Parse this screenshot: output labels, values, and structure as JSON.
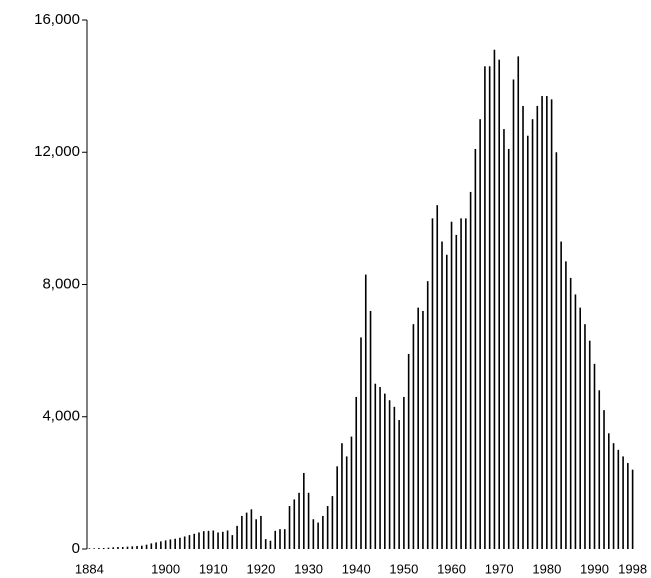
{
  "chart_data": {
    "type": "bar",
    "color": "#000000",
    "categories": [
      "1884",
      null,
      null,
      null,
      null,
      null,
      null,
      null,
      null,
      null,
      null,
      null,
      null,
      null,
      null,
      null,
      "1900",
      null,
      null,
      null,
      null,
      null,
      null,
      null,
      null,
      null,
      "1910",
      null,
      null,
      null,
      null,
      null,
      null,
      null,
      null,
      null,
      "1920",
      null,
      null,
      null,
      null,
      null,
      null,
      null,
      null,
      null,
      "1930",
      null,
      null,
      null,
      null,
      null,
      null,
      null,
      null,
      null,
      "1940",
      null,
      null,
      null,
      null,
      null,
      null,
      null,
      null,
      null,
      "1950",
      null,
      null,
      null,
      null,
      null,
      null,
      null,
      null,
      null,
      "1960",
      null,
      null,
      null,
      null,
      null,
      null,
      null,
      null,
      null,
      "1970",
      null,
      null,
      null,
      null,
      null,
      null,
      null,
      null,
      null,
      "1980",
      null,
      null,
      null,
      null,
      null,
      null,
      null,
      null,
      null,
      "1990",
      null,
      null,
      null,
      null,
      null,
      null,
      null,
      "1998"
    ],
    "values": [
      20,
      20,
      30,
      30,
      40,
      50,
      60,
      60,
      70,
      80,
      90,
      100,
      130,
      170,
      200,
      230,
      260,
      290,
      310,
      340,
      380,
      420,
      460,
      500,
      540,
      550,
      560,
      500,
      520,
      560,
      420,
      700,
      1000,
      1100,
      1200,
      900,
      1000,
      300,
      250,
      550,
      600,
      600,
      1300,
      1500,
      1700,
      2300,
      1700,
      900,
      800,
      1000,
      1300,
      1600,
      2500,
      3200,
      2800,
      3400,
      4600,
      6400,
      8300,
      7200,
      5000,
      4900,
      4700,
      4500,
      4300,
      3900,
      4600,
      5900,
      6800,
      7300,
      7200,
      8100,
      10000,
      10400,
      9300,
      8900,
      9900,
      9500,
      10000,
      10000,
      10800,
      12100,
      13000,
      14600,
      14600,
      15100,
      14800,
      12700,
      12100,
      14200,
      14900,
      13400,
      12500,
      13000,
      13400,
      13700,
      13700,
      13600,
      12000,
      9300,
      8700,
      8200,
      7700,
      7300,
      6800,
      6300,
      5600,
      4800,
      4200,
      3500,
      3200,
      3000,
      2800,
      2600,
      2400
    ],
    "ylim": [
      0,
      16000
    ],
    "yticks": [
      0,
      {
        "value": 4000,
        "label": "4,000"
      },
      {
        "value": 8000,
        "label": "8,000"
      },
      {
        "value": 12000,
        "label": "12,000"
      },
      {
        "value": 16000,
        "label": "16,000"
      }
    ]
  }
}
